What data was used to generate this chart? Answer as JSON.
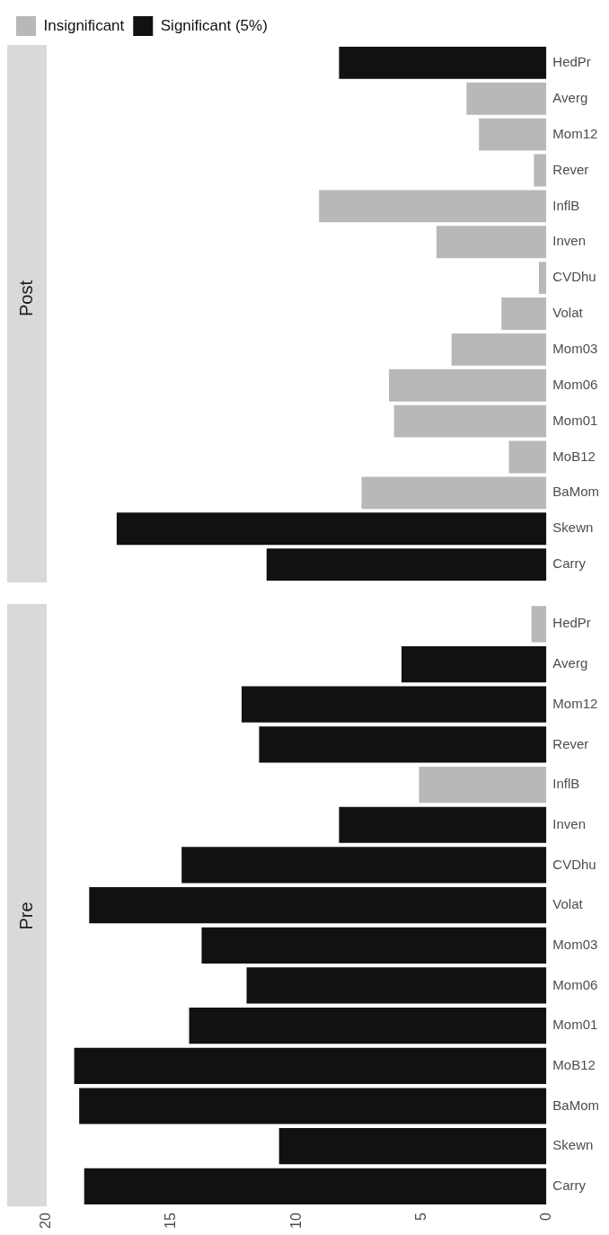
{
  "chart_data": [
    {
      "type": "bar",
      "title": "Post",
      "orientation": "horizontal",
      "legend": "top left",
      "grid": false,
      "tick_labels": "y",
      "categories": [
        "HedPr",
        "Averg",
        "Mom12",
        "Rever",
        "InflB",
        "Inven",
        "CVDhu",
        "Volat",
        "Mom03",
        "Mom06",
        "Mom01",
        "MoB12",
        "BaMom",
        "Skewn",
        "Carry"
      ],
      "xlim": [
        20,
        0
      ],
      "xticks": [
        0,
        5,
        10,
        15,
        20
      ],
      "series": [
        {
          "name": "Insignificant",
          "color": "#b8b8b8",
          "values": [
            null,
            3.2,
            2.7,
            0.5,
            9.1,
            4.4,
            0.3,
            1.8,
            3.8,
            6.3,
            6.1,
            1.5,
            7.4,
            null,
            null
          ]
        },
        {
          "name": "Significant (5%)",
          "color": "#111111",
          "values": [
            8.3,
            null,
            null,
            null,
            null,
            null,
            null,
            null,
            null,
            null,
            null,
            null,
            null,
            17.2,
            11.2
          ]
        }
      ]
    },
    {
      "type": "bar",
      "title": "Pre",
      "orientation": "horizontal",
      "grid": false,
      "categories": [
        "HedPr",
        "Averg",
        "Mom12",
        "Rever",
        "InflB",
        "Inven",
        "CVDhu",
        "Volat",
        "Mom03",
        "Mom06",
        "Mom01",
        "MoB12",
        "BaMom",
        "Skewn",
        "Carry"
      ],
      "xlim": [
        20,
        0
      ],
      "xticks": [
        0,
        5,
        10,
        15,
        20
      ],
      "series": [
        {
          "color": "#b8b8b8",
          "values": [
            0.6,
            null,
            null,
            null,
            5.1,
            null,
            null,
            null,
            null,
            null,
            null,
            null,
            null,
            null,
            null
          ]
        },
        {
          "color": "#111111",
          "values": [
            null,
            5.8,
            12.2,
            11.5,
            null,
            8.3,
            14.6,
            18.3,
            13.8,
            12.0,
            14.3,
            18.9,
            18.7,
            10.7,
            18.5
          ]
        }
      ]
    }
  ]
}
